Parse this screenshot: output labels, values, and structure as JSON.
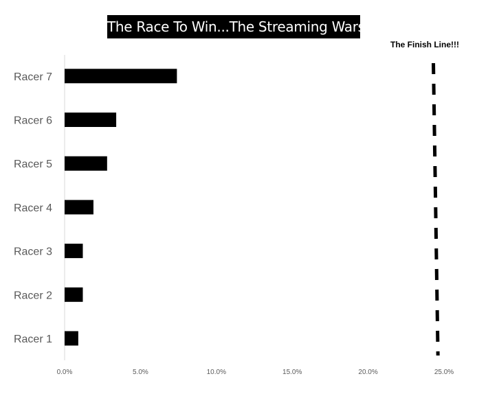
{
  "title": "The Race To Win...The Streaming Wars",
  "finish_line_label": "The Finish Line!!!",
  "colors": {
    "bar": "#000000",
    "axis": "#d9d9d9",
    "text": "#595959",
    "title_bg": "#000000",
    "title_text": "#ffffff"
  },
  "chart_data": {
    "type": "bar",
    "orientation": "horizontal",
    "title": "The Race To Win...The Streaming Wars",
    "categories": [
      "Racer 1",
      "Racer 2",
      "Racer 3",
      "Racer 4",
      "Racer 5",
      "Racer 6",
      "Racer 7"
    ],
    "values": [
      0.9,
      1.2,
      1.2,
      1.9,
      2.8,
      3.4,
      7.4
    ],
    "value_format": "percent",
    "xlim": [
      0,
      25
    ],
    "x_ticks": [
      0,
      5,
      10,
      15,
      20,
      25
    ],
    "x_tick_labels": [
      "0.0%",
      "5.0%",
      "10.0%",
      "15.0%",
      "20.0%",
      "25.0%"
    ],
    "xlabel": "",
    "ylabel": "",
    "grid": false,
    "legend": "none",
    "annotations": [
      {
        "type": "finish-line",
        "text": "The Finish Line!!!",
        "x_start": 24.3,
        "x_end": 24.6,
        "style": "dashed"
      }
    ]
  }
}
